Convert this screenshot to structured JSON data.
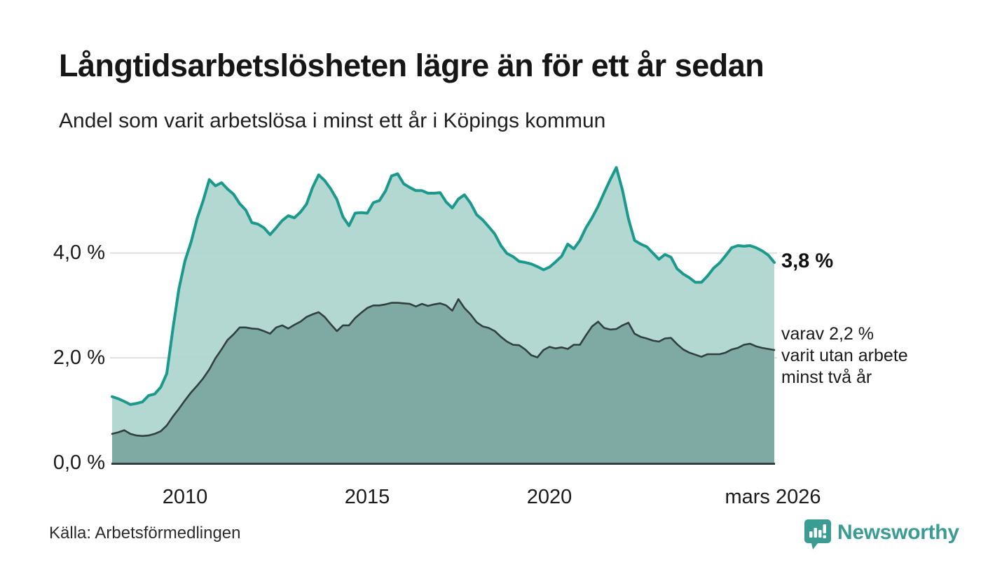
{
  "header": {
    "title": "Långtidsarbetslösheten lägre än för ett år sedan",
    "subtitle": "Andel som varit arbetslösa i minst ett år i Köpings kommun"
  },
  "annotation": {
    "primary_value": "3,8 %",
    "secondary_lines": [
      "varav 2,2 %",
      "varit utan arbete",
      "minst två år"
    ]
  },
  "footer": {
    "source": "Källa: Arbetsförmedlingen",
    "brand": "Newsworthy"
  },
  "palette": {
    "line_over_1yr": "#1a998c",
    "fill_over_1yr": "#add5cf",
    "line_over_2yr": "#2f403e",
    "fill_over_2yr": "#7ba6a0",
    "gridline": "#d8d8d8",
    "baseline": "#2f403e",
    "brand_teal": "#3a9c93",
    "background": "#ffffff"
  },
  "chart_data": {
    "type": "area",
    "title": "Långtidsarbetslösheten lägre än för ett år sedan",
    "subtitle": "Andel som varit arbetslösa i minst ett år i Köpings kommun",
    "unit": "percent of workforce",
    "x_start_year": 2008.0,
    "x_end_year": 2026.17,
    "x_step_months": 2,
    "grid": true,
    "legend_position": "right-annotations",
    "x_axis": {
      "tick_labels": [
        "2010",
        "2015",
        "2020",
        "mars 2026"
      ],
      "tick_years": [
        2010,
        2015,
        2020,
        2026.17
      ]
    },
    "y_axis": {
      "tick_labels": [
        "4,0 %",
        "2,0 %",
        "0,0 %"
      ],
      "tick_values": [
        4,
        2,
        0
      ],
      "grid_values": [
        4,
        2
      ],
      "ylim": [
        0,
        6
      ]
    },
    "series": [
      {
        "name": "Arbetslösa minst ett år",
        "end_label": "3,8 %",
        "end_value": 3.8,
        "line_color": "#1a998c",
        "fill_color": "#add5cf",
        "line_width": 4,
        "values": [
          1.26,
          1.22,
          1.17,
          1.11,
          1.13,
          1.16,
          1.28,
          1.31,
          1.44,
          1.7,
          2.55,
          3.32,
          3.85,
          4.21,
          4.66,
          5.0,
          5.4,
          5.28,
          5.34,
          5.22,
          5.12,
          4.94,
          4.82,
          4.58,
          4.55,
          4.48,
          4.35,
          4.48,
          4.62,
          4.71,
          4.67,
          4.78,
          4.93,
          5.25,
          5.49,
          5.38,
          5.22,
          5.02,
          4.69,
          4.52,
          4.76,
          4.77,
          4.76,
          4.96,
          5.0,
          5.18,
          5.47,
          5.51,
          5.32,
          5.25,
          5.19,
          5.19,
          5.14,
          5.14,
          5.15,
          4.97,
          4.86,
          5.03,
          5.11,
          4.95,
          4.73,
          4.63,
          4.5,
          4.36,
          4.14,
          3.99,
          3.93,
          3.84,
          3.82,
          3.79,
          3.74,
          3.68,
          3.73,
          3.83,
          3.94,
          4.17,
          4.08,
          4.24,
          4.48,
          4.67,
          4.89,
          5.15,
          5.4,
          5.63,
          5.2,
          4.65,
          4.24,
          4.17,
          4.12,
          4.0,
          3.88,
          3.97,
          3.92,
          3.7,
          3.6,
          3.53,
          3.44,
          3.44,
          3.56,
          3.71,
          3.81,
          3.95,
          4.1,
          4.14,
          4.13,
          4.14,
          4.1,
          4.04,
          3.96,
          3.82
        ]
      },
      {
        "name": "varav utan arbete minst två år",
        "end_label": "varav 2,2 %",
        "end_value": 2.2,
        "line_color": "#2f403e",
        "fill_color": "#7ba6a0",
        "line_width": 2.6,
        "values": [
          0.55,
          0.58,
          0.62,
          0.55,
          0.52,
          0.51,
          0.52,
          0.55,
          0.6,
          0.71,
          0.88,
          1.03,
          1.19,
          1.34,
          1.47,
          1.61,
          1.78,
          1.99,
          2.16,
          2.34,
          2.45,
          2.58,
          2.58,
          2.56,
          2.55,
          2.51,
          2.46,
          2.58,
          2.62,
          2.56,
          2.63,
          2.69,
          2.78,
          2.83,
          2.87,
          2.78,
          2.64,
          2.51,
          2.62,
          2.62,
          2.76,
          2.86,
          2.95,
          3.0,
          3.0,
          3.02,
          3.05,
          3.05,
          3.04,
          3.03,
          2.98,
          3.03,
          2.99,
          3.02,
          3.04,
          3.0,
          2.9,
          3.12,
          2.95,
          2.83,
          2.68,
          2.6,
          2.57,
          2.51,
          2.4,
          2.31,
          2.25,
          2.24,
          2.16,
          2.05,
          2.01,
          2.15,
          2.21,
          2.18,
          2.2,
          2.17,
          2.25,
          2.25,
          2.43,
          2.6,
          2.69,
          2.57,
          2.54,
          2.55,
          2.62,
          2.67,
          2.46,
          2.4,
          2.37,
          2.33,
          2.31,
          2.37,
          2.38,
          2.26,
          2.16,
          2.1,
          2.06,
          2.02,
          2.07,
          2.07,
          2.07,
          2.1,
          2.16,
          2.19,
          2.25,
          2.27,
          2.22,
          2.19,
          2.17,
          2.15
        ]
      }
    ]
  }
}
